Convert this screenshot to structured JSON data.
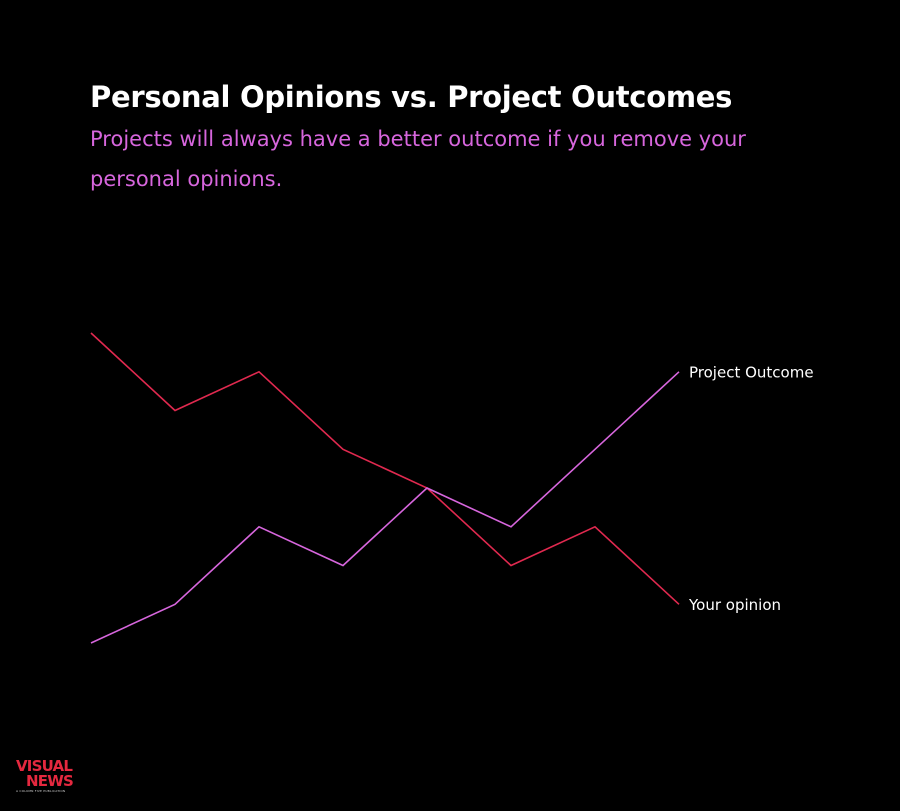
{
  "header": {
    "title": "Personal Opinions vs. Project Outcomes",
    "subtitle": "Projects will always have a better outcome if you remove your personal opinions."
  },
  "chart_data": {
    "type": "line",
    "title": "Personal Opinions vs. Project Outcomes",
    "subtitle": "Projects will always have a better outcome if you remove your personal opinions.",
    "x": [
      1,
      2,
      3,
      4,
      5,
      6,
      7,
      8
    ],
    "series": [
      {
        "name": "Your opinion",
        "color": "#e0294f",
        "values": [
          8,
          6,
          7,
          5,
          4,
          2,
          3,
          1
        ]
      },
      {
        "name": "Project Outcome",
        "color": "#d766dd",
        "values": [
          0,
          1,
          3,
          2,
          4,
          3,
          5,
          7
        ]
      }
    ],
    "xlabel": "",
    "ylabel": "",
    "ylim": [
      0,
      8
    ],
    "axes_visible": false,
    "grid": false,
    "legend": "direct labels at line ends"
  },
  "branding": {
    "logo_line1": "VISUAL",
    "logo_line2": "NEWS",
    "logo_tagline": "A COLUMN FIVE PUBLICATION",
    "logo_color": "#e5283f"
  }
}
